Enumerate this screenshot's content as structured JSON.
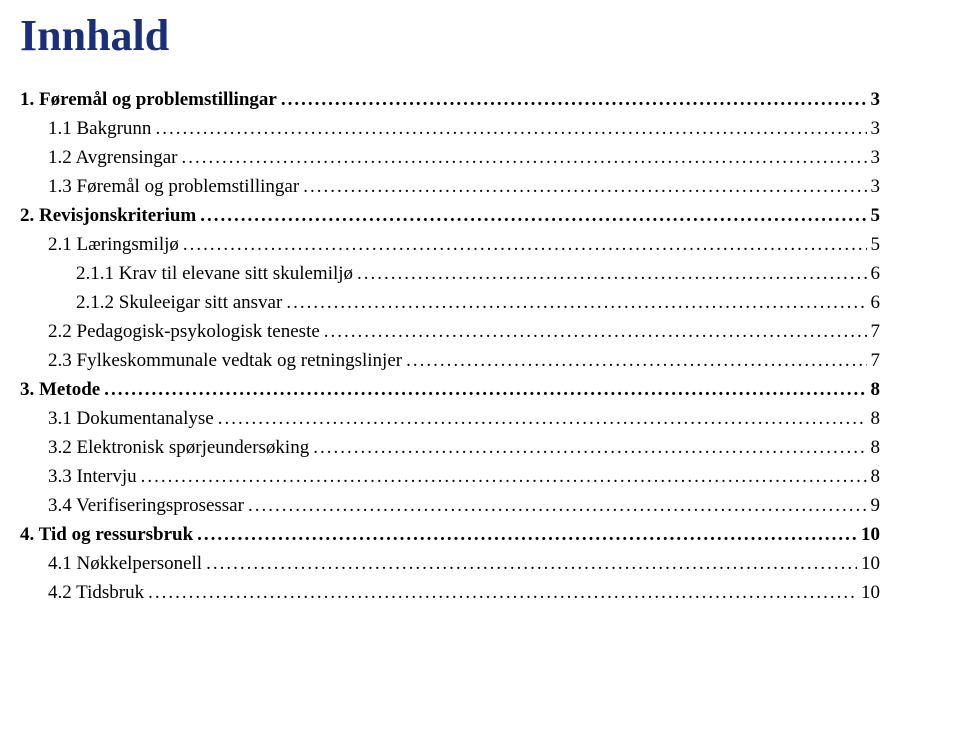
{
  "title": "Innhald",
  "title_color": "#1a2e7a",
  "title_fontsize": 44,
  "body_fontsize": 19,
  "text_color": "#000000",
  "background_color": "#ffffff",
  "toc": [
    {
      "label": "1. Føremål og problemstillingar",
      "page": "3",
      "level": 0,
      "bold": true
    },
    {
      "label": "1.1 Bakgrunn",
      "page": "3",
      "level": 1,
      "bold": false
    },
    {
      "label": "1.2 Avgrensingar",
      "page": "3",
      "level": 1,
      "bold": false
    },
    {
      "label": "1.3 Føremål og problemstillingar",
      "page": "3",
      "level": 1,
      "bold": false
    },
    {
      "label": "2. Revisjonskriterium",
      "page": "5",
      "level": 0,
      "bold": true
    },
    {
      "label": "2.1 Læringsmiljø",
      "page": "5",
      "level": 1,
      "bold": false
    },
    {
      "label": "2.1.1 Krav til elevane sitt skulemiljø",
      "page": "6",
      "level": 2,
      "bold": false
    },
    {
      "label": "2.1.2 Skuleeigar sitt ansvar",
      "page": "6",
      "level": 2,
      "bold": false
    },
    {
      "label": "2.2 Pedagogisk-psykologisk teneste",
      "page": "7",
      "level": 1,
      "bold": false
    },
    {
      "label": "2.3 Fylkeskommunale vedtak og retningslinjer",
      "page": "7",
      "level": 1,
      "bold": false
    },
    {
      "label": "3. Metode",
      "page": "8",
      "level": 0,
      "bold": true
    },
    {
      "label": "3.1 Dokumentanalyse",
      "page": "8",
      "level": 1,
      "bold": false
    },
    {
      "label": "3.2 Elektronisk spørjeundersøking",
      "page": "8",
      "level": 1,
      "bold": false
    },
    {
      "label": "3.3 Intervju",
      "page": "8",
      "level": 1,
      "bold": false
    },
    {
      "label": "3.4 Verifiseringsprosessar",
      "page": "9",
      "level": 1,
      "bold": false
    },
    {
      "label": "4. Tid og ressursbruk",
      "page": "10",
      "level": 0,
      "bold": true
    },
    {
      "label": "4.1 Nøkkelpersonell",
      "page": "10",
      "level": 1,
      "bold": false
    },
    {
      "label": "4.2 Tidsbruk",
      "page": "10",
      "level": 1,
      "bold": false
    }
  ]
}
